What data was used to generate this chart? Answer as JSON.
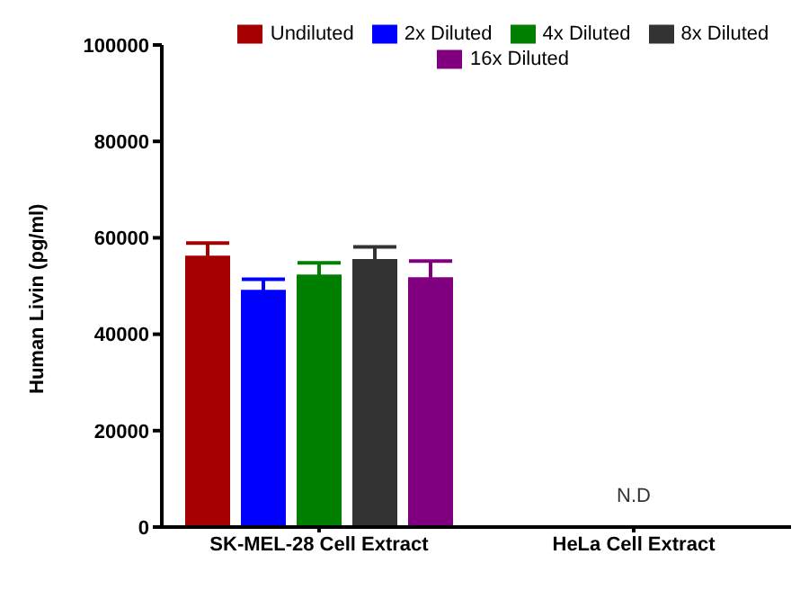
{
  "chart_data": {
    "type": "bar",
    "ylabel": "Human Livin (pg/ml)",
    "categories": [
      "SK-MEL-28 Cell Extract",
      "HeLa Cell Extract"
    ],
    "series": [
      {
        "name": "Undiluted",
        "color": "#a50000",
        "values": [
          56300,
          null
        ],
        "errors": [
          2600,
          null
        ]
      },
      {
        "name": "2x Diluted",
        "color": "#0000ff",
        "values": [
          49200,
          null
        ],
        "errors": [
          2200,
          null
        ]
      },
      {
        "name": "4x Diluted",
        "color": "#007f00",
        "values": [
          52400,
          null
        ],
        "errors": [
          2400,
          null
        ]
      },
      {
        "name": "8x Diluted",
        "color": "#333333",
        "values": [
          55600,
          null
        ],
        "errors": [
          2500,
          null
        ]
      },
      {
        "name": "16x Diluted",
        "color": "#800080",
        "values": [
          51800,
          null
        ],
        "errors": [
          3400,
          null
        ]
      }
    ],
    "ylim": [
      0,
      100000
    ],
    "yticks": [
      0,
      20000,
      40000,
      60000,
      80000,
      100000
    ],
    "grid": false,
    "legend": "top",
    "annotations": [
      "N.D"
    ]
  }
}
